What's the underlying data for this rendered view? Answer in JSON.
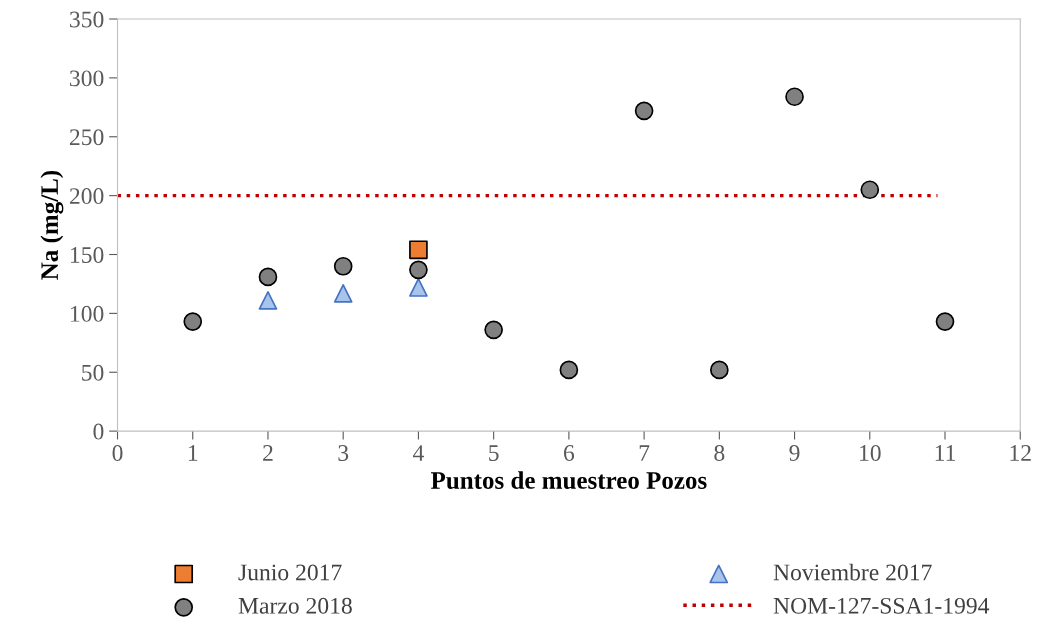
{
  "chart_data": {
    "type": "scatter",
    "xlabel": "Puntos de muestreo Pozos",
    "ylabel": "Na (mg/L)",
    "xlim": [
      0,
      12
    ],
    "xticks": [
      0,
      1,
      2,
      3,
      4,
      5,
      6,
      7,
      8,
      9,
      10,
      11,
      12
    ],
    "ylim": [
      0,
      350
    ],
    "yticks": [
      0,
      50,
      100,
      150,
      200,
      250,
      300,
      350
    ],
    "grid": false,
    "legend": "bottom",
    "series": [
      {
        "name": "Junio 2017",
        "color": "#ed7d31",
        "marker": "square",
        "x": [
          4
        ],
        "values": [
          154
        ]
      },
      {
        "name": "Noviembre 2017",
        "color": "#a9c4eb",
        "marker": "triangle",
        "x": [
          2,
          3,
          4
        ],
        "values": [
          111,
          117,
          122
        ]
      },
      {
        "name": "Marzo 2018",
        "color": "#808080",
        "marker": "circle",
        "x": [
          1,
          2,
          3,
          4,
          5,
          6,
          7,
          8,
          9,
          10,
          11
        ],
        "values": [
          93,
          131,
          140,
          137,
          86,
          52,
          272,
          52,
          284,
          205,
          93
        ]
      },
      {
        "name": "NOM-127-SSA1-1994",
        "type": "line",
        "color": "#c00000",
        "marker": "none",
        "line_style": "dotted",
        "x": [
          0,
          10.9
        ],
        "values": [
          200,
          200
        ]
      }
    ]
  }
}
